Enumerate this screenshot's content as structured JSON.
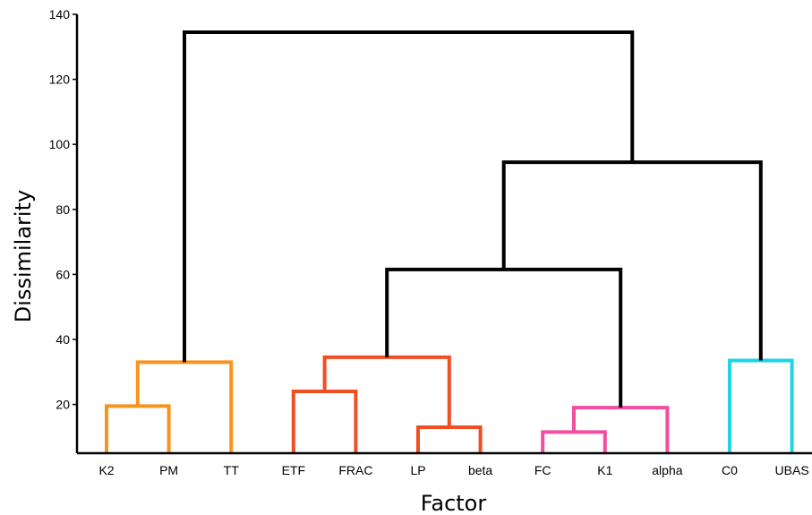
{
  "chart_data": {
    "type": "dendrogram",
    "xlabel": "Factor",
    "ylabel": "Dissimilarity",
    "ylim": [
      5,
      140
    ],
    "yticks": [
      20,
      40,
      60,
      80,
      100,
      120,
      140
    ],
    "grid": false,
    "leaves": [
      {
        "label": "K2",
        "cluster": "orange"
      },
      {
        "label": "PM",
        "cluster": "orange"
      },
      {
        "label": "TT",
        "cluster": "orange"
      },
      {
        "label": "ETF",
        "cluster": "red"
      },
      {
        "label": "FRAC",
        "cluster": "red"
      },
      {
        "label": "LP",
        "cluster": "red"
      },
      {
        "label": "beta",
        "cluster": "red"
      },
      {
        "label": "FC",
        "cluster": "pink"
      },
      {
        "label": "K1",
        "cluster": "pink"
      },
      {
        "label": "alpha",
        "cluster": "pink"
      },
      {
        "label": "C0",
        "cluster": "cyan"
      },
      {
        "label": "UBAS",
        "cluster": "cyan"
      }
    ],
    "merges": [
      {
        "id": "m1",
        "left": "K2",
        "right": "PM",
        "height": 19.5,
        "color": "#f7941d"
      },
      {
        "id": "m2",
        "left": "m1",
        "right": "TT",
        "height": 33,
        "color": "#f7941d"
      },
      {
        "id": "m3",
        "left": "ETF",
        "right": "FRAC",
        "height": 24,
        "color": "#f04e23"
      },
      {
        "id": "m4",
        "left": "LP",
        "right": "beta",
        "height": 13,
        "color": "#f04e23"
      },
      {
        "id": "m5",
        "left": "m3",
        "right": "m4",
        "height": 34.5,
        "color": "#f04e23"
      },
      {
        "id": "m6",
        "left": "FC",
        "right": "K1",
        "height": 11.5,
        "color": "#f24ea1"
      },
      {
        "id": "m7",
        "left": "m6",
        "right": "alpha",
        "height": 19,
        "color": "#f24ea1"
      },
      {
        "id": "m8",
        "left": "C0",
        "right": "UBAS",
        "height": 33.5,
        "color": "#1ed5e5"
      },
      {
        "id": "m9",
        "left": "m5",
        "right": "m7",
        "height": 61.5,
        "color": "#000000"
      },
      {
        "id": "m10",
        "left": "m9",
        "right": "m8",
        "height": 94.5,
        "color": "#000000"
      },
      {
        "id": "m11",
        "left": "m2",
        "right": "m10",
        "height": 134.5,
        "color": "#000000"
      }
    ],
    "leaf_line_color": "#000000"
  }
}
